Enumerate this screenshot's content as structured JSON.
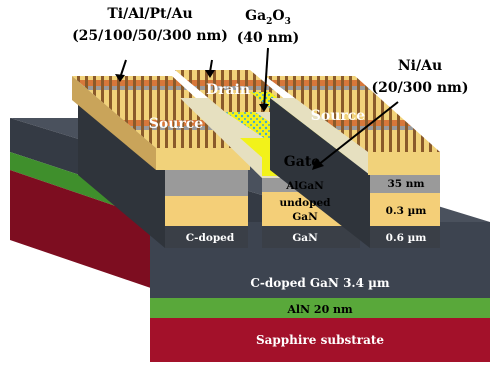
{
  "labels": {
    "metal_stack_line1": "Ti/Al/Pt/Au",
    "metal_stack_line2": "(25/100/50/300 nm)",
    "oxide_name": "Ga",
    "oxide_sub1": "2",
    "oxide_mid": "O",
    "oxide_sub2": "3",
    "oxide_thickness": "(40 nm)",
    "gate_metal_line1": "Ni/Au",
    "gate_metal_line2": "(20/300 nm)",
    "drain": "Drain",
    "source_left": "Source",
    "source_right": "Source",
    "gate": "Gate"
  },
  "layers": {
    "algan": "AlGaN",
    "algan_thickness": "35 nm",
    "undoped_line1": "undoped",
    "undoped_line2": "GaN",
    "undoped_thickness": "0.3 µm",
    "c_doped_mesa": "C-doped",
    "gan_mesa": "GaN",
    "c_doped_thickness": "0.6 µm",
    "buffer": "C-doped GaN  3.4 µm",
    "nucleation": "AlN  20 nm",
    "substrate": "Sapphire substrate"
  },
  "colors": {
    "substrate": "#a3112a",
    "aln": "#59a83a",
    "buffer": "#3d4450",
    "mesa_dark": "#3a3f47",
    "gan_undoped": "#f4cf78",
    "algan": "#9a9a9a",
    "metal_top": "#d7773a",
    "metal_side": "#b85a22",
    "oxide": "#f2f21a",
    "oxide_dots": "#3fa9d6"
  }
}
